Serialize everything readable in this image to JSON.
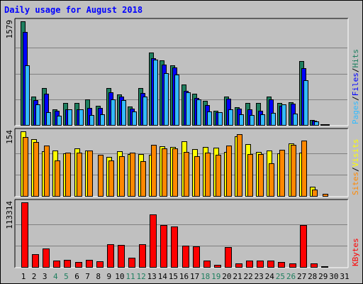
{
  "chart_data": [
    {
      "type": "bar",
      "title": "Daily usage for August 2018",
      "ymax_label": "1579",
      "ylabel_parts": [
        "Pages",
        "/",
        "Files",
        "/",
        "Hits"
      ],
      "grid": true,
      "categories": [
        "1",
        "2",
        "3",
        "4",
        "5",
        "6",
        "7",
        "8",
        "9",
        "10",
        "11",
        "12",
        "13",
        "14",
        "15",
        "16",
        "17",
        "18",
        "19",
        "20",
        "21",
        "22",
        "23",
        "24",
        "25",
        "26",
        "27",
        "28",
        "29",
        "30",
        "31"
      ],
      "weekend_days": [
        "4",
        "5",
        "11",
        "12",
        "18",
        "19",
        "25",
        "26"
      ],
      "series": [
        {
          "name": "Hits",
          "color": "#1f7f5f",
          "values": [
            1579,
            442,
            568,
            252,
            340,
            340,
            400,
            302,
            568,
            475,
            290,
            568,
            1107,
            989,
            915,
            626,
            480,
            380,
            222,
            442,
            280,
            340,
            340,
            442,
            340,
            359,
            978,
            85,
            25,
            0,
            0
          ]
        },
        {
          "name": "Files",
          "color": "#0000ff",
          "values": [
            1420,
            390,
            478,
            223,
            251,
            251,
            270,
            270,
            500,
            445,
            260,
            490,
            1020,
            920,
            880,
            530,
            420,
            310,
            206,
            410,
            253,
            250,
            230,
            400,
            301,
            330,
            870,
            80,
            22,
            0,
            0
          ]
        },
        {
          "name": "Pages",
          "color": "#33bbff",
          "values": [
            910,
            320,
            204,
            154,
            242,
            242,
            165,
            170,
            400,
            390,
            210,
            440,
            1000,
            790,
            770,
            500,
            400,
            214,
            200,
            250,
            170,
            159,
            167,
            190,
            326,
            180,
            690,
            64,
            18,
            0,
            0
          ]
        }
      ]
    },
    {
      "type": "bar",
      "ymax_label": "154",
      "ylabel_parts": [
        "Sites",
        "/",
        "Visits"
      ],
      "grid": true,
      "categories": [
        "1",
        "2",
        "3",
        "4",
        "5",
        "6",
        "7",
        "8",
        "9",
        "10",
        "11",
        "12",
        "13",
        "14",
        "15",
        "16",
        "17",
        "18",
        "19",
        "20",
        "21",
        "22",
        "23",
        "24",
        "25",
        "26",
        "27",
        "28",
        "29",
        "30",
        "31"
      ],
      "series": [
        {
          "name": "Visits",
          "color": "#ffff00",
          "values": [
            154,
            135,
            107,
            109,
            102,
            113,
            108,
            0,
            94,
            107,
            101,
            101,
            98,
            119,
            118,
            130,
            112,
            118,
            115,
            106,
            142,
            124,
            106,
            108,
            102,
            126,
            103,
            23,
            0,
            0,
            0
          ]
        },
        {
          "name": "Sites",
          "color": "#ff8800",
          "values": [
            141,
            129,
            121,
            86,
            103,
            103,
            109,
            99,
            85,
            96,
            104,
            83,
            123,
            113,
            113,
            106,
            96,
            104,
            99,
            120,
            147,
            101,
            101,
            79,
            111,
            122,
            132,
            16,
            6,
            0,
            0
          ]
        }
      ]
    },
    {
      "type": "bar",
      "ymax_label": "113314",
      "ylabel_parts": [
        "KBytes"
      ],
      "grid": true,
      "categories": [
        "1",
        "2",
        "3",
        "4",
        "5",
        "6",
        "7",
        "8",
        "9",
        "10",
        "11",
        "12",
        "13",
        "14",
        "15",
        "16",
        "17",
        "18",
        "19",
        "20",
        "21",
        "22",
        "23",
        "24",
        "25",
        "26",
        "27",
        "28",
        "29",
        "30",
        "31"
      ],
      "series": [
        {
          "name": "KBytes",
          "color": "#ff0000",
          "values": [
            113314,
            23006,
            33628,
            12388,
            14159,
            9733,
            13274,
            10618,
            40709,
            39824,
            16814,
            40709,
            92023,
            74324,
            71669,
            38053,
            37168,
            12389,
            5309,
            35398,
            7964,
            12388,
            12388,
            12389,
            9734,
            7964,
            74324,
            7079,
            2654,
            0,
            0
          ]
        }
      ]
    }
  ]
}
